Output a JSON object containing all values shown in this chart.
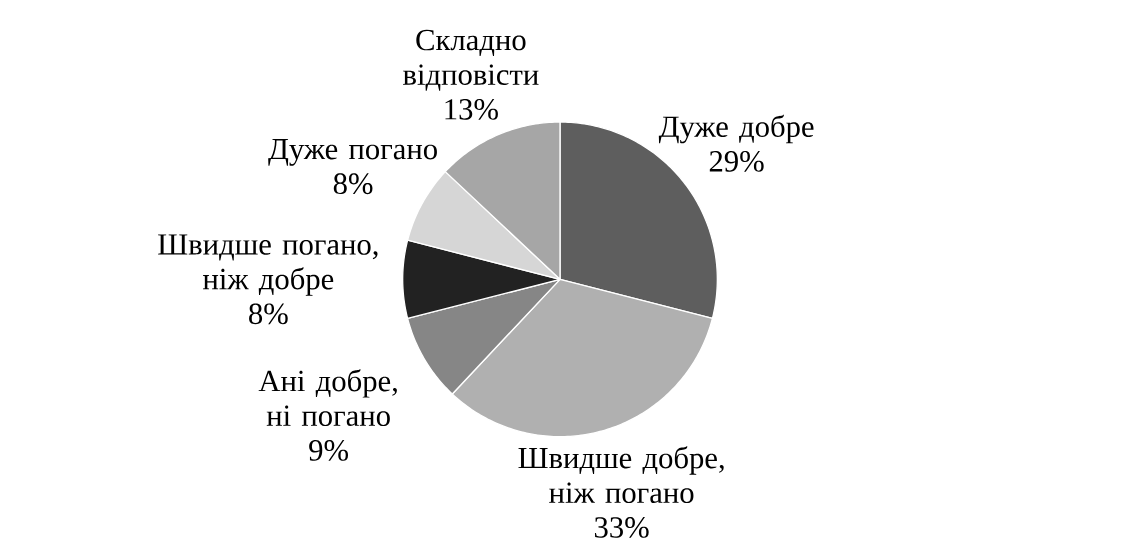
{
  "chart_data": {
    "type": "pie",
    "categories": [
      "Дуже добре",
      "Швидше добре, ніж погано",
      "Ані добре, ні погано",
      "Швидше погано, ніж добре",
      "Дуже погано",
      "Складно відповісти"
    ],
    "values": [
      29,
      33,
      9,
      8,
      8,
      13
    ],
    "value_labels": [
      "29%",
      "33%",
      "9%",
      "8%",
      "8%",
      "13%"
    ],
    "colors": [
      "#5e5e5e",
      "#b0b0b0",
      "#868686",
      "#222222",
      "#d6d6d6",
      "#a6a6a6"
    ]
  }
}
